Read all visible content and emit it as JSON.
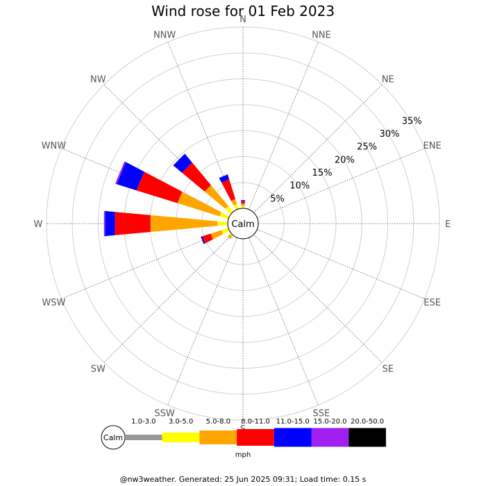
{
  "chart_data": {
    "type": "windrose",
    "title": "Wind rose for 01 Feb 2023",
    "directions": [
      "N",
      "NNE",
      "NE",
      "ENE",
      "E",
      "ESE",
      "SE",
      "SSE",
      "S",
      "SSW",
      "SW",
      "WSW",
      "W",
      "WNW",
      "NW",
      "NNW"
    ],
    "radial_ticks": [
      "5%",
      "10%",
      "15%",
      "20%",
      "25%",
      "30%",
      "35%"
    ],
    "radial_tick_values": [
      5,
      10,
      15,
      20,
      25,
      30,
      35
    ],
    "calm_label": "Calm",
    "speed_bins": [
      {
        "label": "1.0-3.0",
        "color": "#999999"
      },
      {
        "label": "3.0-5.0",
        "color": "#ffff00"
      },
      {
        "label": "5.0-8.0",
        "color": "#ffa500"
      },
      {
        "label": "8.0-11.0",
        "color": "#ff0000"
      },
      {
        "label": "11.0-15.0",
        "color": "#0000ff"
      },
      {
        "label": "15.0-20.0",
        "color": "#a020f0"
      },
      {
        "label": "20.0-50.0",
        "color": "#000000"
      }
    ],
    "unit": "mph",
    "series": [
      {
        "direction": "N",
        "cumulative_percent": [
          0.0,
          0.4,
          0.9,
          1.4,
          1.6,
          1.6,
          1.6
        ]
      },
      {
        "direction": "NNE",
        "cumulative_percent": [
          0,
          0,
          0,
          0,
          0,
          0,
          0
        ]
      },
      {
        "direction": "NE",
        "cumulative_percent": [
          0,
          0,
          0,
          0,
          0,
          0,
          0
        ]
      },
      {
        "direction": "ENE",
        "cumulative_percent": [
          0,
          0,
          0,
          0,
          0,
          0,
          0
        ]
      },
      {
        "direction": "E",
        "cumulative_percent": [
          0,
          0,
          0,
          0,
          0,
          0,
          0
        ]
      },
      {
        "direction": "ESE",
        "cumulative_percent": [
          0,
          0,
          0,
          0,
          0,
          0,
          0
        ]
      },
      {
        "direction": "SE",
        "cumulative_percent": [
          0,
          0,
          0,
          0,
          0,
          0,
          0
        ]
      },
      {
        "direction": "SSE",
        "cumulative_percent": [
          0,
          0,
          0,
          0,
          0,
          0,
          0
        ]
      },
      {
        "direction": "S",
        "cumulative_percent": [
          0,
          0,
          0,
          0,
          0,
          0,
          0
        ]
      },
      {
        "direction": "SSW",
        "cumulative_percent": [
          0,
          0,
          0,
          0,
          0,
          0,
          0
        ]
      },
      {
        "direction": "SW",
        "cumulative_percent": [
          0.0,
          0.3,
          0.9,
          0.9,
          0.9,
          0.9,
          0.9
        ]
      },
      {
        "direction": "WSW",
        "cumulative_percent": [
          0.0,
          1.4,
          3.6,
          5.3,
          5.6,
          5.6,
          5.6
        ]
      },
      {
        "direction": "W",
        "cumulative_percent": [
          0.0,
          2.0,
          15.0,
          21.9,
          23.8,
          24.0,
          24.0
        ]
      },
      {
        "direction": "WNW",
        "cumulative_percent": [
          0.0,
          1.8,
          10.3,
          18.6,
          22.6,
          22.9,
          22.9
        ]
      },
      {
        "direction": "NW",
        "cumulative_percent": [
          0.0,
          1.5,
          6.7,
          12.4,
          14.6,
          14.6,
          14.6
        ]
      },
      {
        "direction": "NNW",
        "cumulative_percent": [
          0.0,
          1.0,
          2.0,
          6.0,
          7.0,
          7.0,
          7.0
        ]
      }
    ]
  },
  "footer": "@nw3weather. Generated: 25 Jun 2025 09:31; Load time: 0.15 s"
}
